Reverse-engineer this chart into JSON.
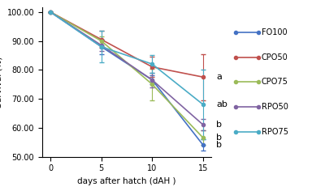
{
  "x": [
    0,
    5,
    10,
    15
  ],
  "series_order": [
    "FO100",
    "CPO50",
    "CPO75",
    "RPO50",
    "RPO75"
  ],
  "series": {
    "FO100": {
      "y": [
        100,
        88.0,
        76.5,
        54.0
      ],
      "yerr": [
        0,
        2.5,
        1.5,
        2.0
      ],
      "color": "#4472C4",
      "label": "FO100"
    },
    "CPO50": {
      "y": [
        100,
        90.5,
        81.0,
        77.5
      ],
      "yerr": [
        0,
        3.0,
        3.5,
        8.0
      ],
      "color": "#C0504D",
      "label": "CPO50"
    },
    "CPO75": {
      "y": [
        100,
        90.0,
        75.0,
        56.5
      ],
      "yerr": [
        0,
        1.5,
        5.5,
        2.5
      ],
      "color": "#9BBB59",
      "label": "CPO75"
    },
    "RPO50": {
      "y": [
        100,
        88.5,
        76.5,
        61.0
      ],
      "yerr": [
        0,
        2.0,
        2.5,
        2.0
      ],
      "color": "#8064A2",
      "label": "RPO50"
    },
    "RPO75": {
      "y": [
        100,
        88.0,
        82.0,
        68.0
      ],
      "yerr": [
        0,
        5.5,
        3.0,
        12.0
      ],
      "color": "#4BACC6",
      "label": "RPO75"
    }
  },
  "sig_labels": [
    {
      "text": "a",
      "y": 77.5
    },
    {
      "text": "ab",
      "y": 68.0
    },
    {
      "text": "b",
      "y": 61.0
    },
    {
      "text": "b",
      "y": 56.5
    },
    {
      "text": "b",
      "y": 54.0
    }
  ],
  "xlabel": "days after hatch (dAH )",
  "ylim": [
    50.0,
    101.5
  ],
  "yticks": [
    50.0,
    60.0,
    70.0,
    80.0,
    90.0,
    100.0
  ],
  "xticks": [
    0,
    5,
    10,
    15
  ],
  "background_color": "#ffffff"
}
